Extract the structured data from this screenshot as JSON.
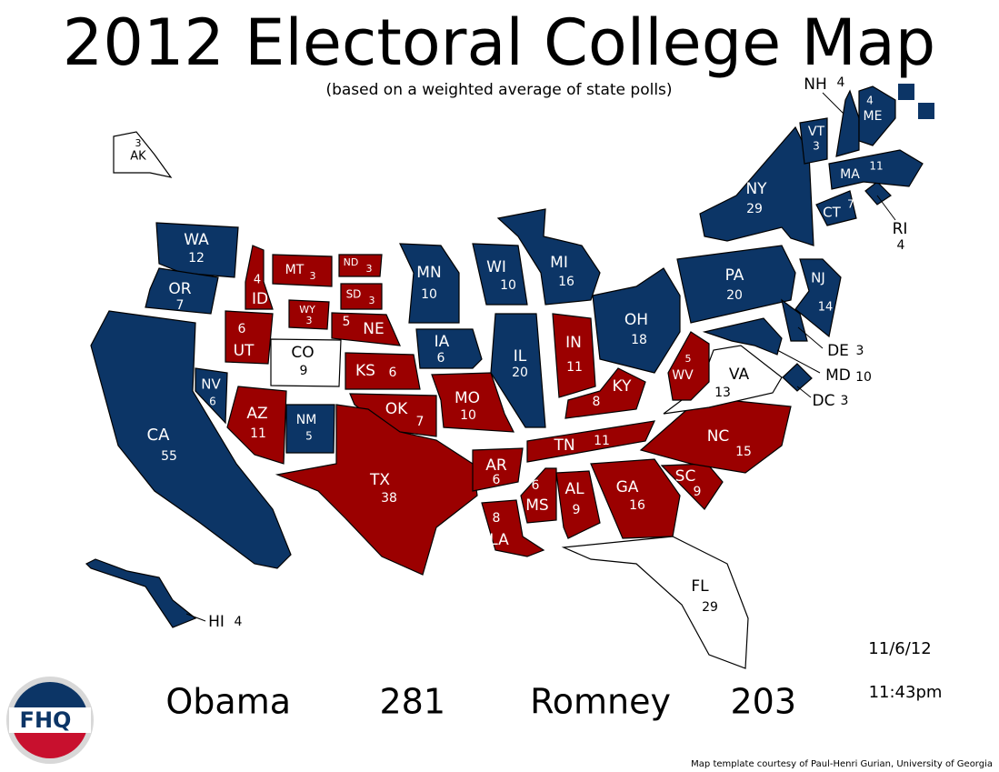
{
  "title": "2012 Electoral College Map",
  "subtitle": "(based on a weighted average of state polls)",
  "states": [
    {
      "abbr": "WA",
      "votes": 12,
      "color": "#0c3566"
    },
    {
      "abbr": "OR",
      "votes": 7,
      "color": "#0c3566"
    },
    {
      "abbr": "CA",
      "votes": 55,
      "color": "#0c3566"
    },
    {
      "abbr": "NV",
      "votes": 6,
      "color": "#0c3566"
    },
    {
      "abbr": "ID",
      "votes": 4,
      "color": "#9b0000"
    },
    {
      "abbr": "MT",
      "votes": 3,
      "color": "#9b0000"
    },
    {
      "abbr": "WY",
      "votes": 3,
      "color": "#9b0000"
    },
    {
      "abbr": "UT",
      "votes": 6,
      "color": "#9b0000"
    },
    {
      "abbr": "CO",
      "votes": 9,
      "color": "#ffffff"
    },
    {
      "abbr": "AZ",
      "votes": 11,
      "color": "#9b0000"
    },
    {
      "abbr": "NM",
      "votes": 5,
      "color": "#0c3566"
    },
    {
      "abbr": "ND",
      "votes": 3,
      "color": "#9b0000"
    },
    {
      "abbr": "SD",
      "votes": 3,
      "color": "#9b0000"
    },
    {
      "abbr": "NE",
      "votes": 5,
      "color": "#9b0000"
    },
    {
      "abbr": "KS",
      "votes": 6,
      "color": "#9b0000"
    },
    {
      "abbr": "OK",
      "votes": 7,
      "color": "#9b0000"
    },
    {
      "abbr": "TX",
      "votes": 38,
      "color": "#9b0000"
    },
    {
      "abbr": "MN",
      "votes": 10,
      "color": "#0c3566"
    },
    {
      "abbr": "IA",
      "votes": 6,
      "color": "#0c3566"
    },
    {
      "abbr": "MO",
      "votes": 10,
      "color": "#9b0000"
    },
    {
      "abbr": "AR",
      "votes": 6,
      "color": "#9b0000"
    },
    {
      "abbr": "LA",
      "votes": 8,
      "color": "#9b0000"
    },
    {
      "abbr": "WI",
      "votes": 10,
      "color": "#0c3566"
    },
    {
      "abbr": "IL",
      "votes": 20,
      "color": "#0c3566"
    },
    {
      "abbr": "MI",
      "votes": 16,
      "color": "#0c3566"
    },
    {
      "abbr": "IN",
      "votes": 11,
      "color": "#9b0000"
    },
    {
      "abbr": "OH",
      "votes": 18,
      "color": "#0c3566"
    },
    {
      "abbr": "KY",
      "votes": 8,
      "color": "#9b0000"
    },
    {
      "abbr": "TN",
      "votes": 11,
      "color": "#9b0000"
    },
    {
      "abbr": "MS",
      "votes": 6,
      "color": "#9b0000"
    },
    {
      "abbr": "AL",
      "votes": 9,
      "color": "#9b0000"
    },
    {
      "abbr": "GA",
      "votes": 16,
      "color": "#9b0000"
    },
    {
      "abbr": "FL",
      "votes": 29,
      "color": "#ffffff"
    },
    {
      "abbr": "SC",
      "votes": 9,
      "color": "#9b0000"
    },
    {
      "abbr": "NC",
      "votes": 15,
      "color": "#9b0000"
    },
    {
      "abbr": "VA",
      "votes": 13,
      "color": "#ffffff"
    },
    {
      "abbr": "WV",
      "votes": 5,
      "color": "#9b0000"
    },
    {
      "abbr": "PA",
      "votes": 20,
      "color": "#0c3566"
    },
    {
      "abbr": "NY",
      "votes": 29,
      "color": "#0c3566"
    },
    {
      "abbr": "NJ",
      "votes": 14,
      "color": "#0c3566"
    },
    {
      "abbr": "DE",
      "votes": 3,
      "color": "#0c3566"
    },
    {
      "abbr": "MD",
      "votes": 10,
      "color": "#0c3566"
    },
    {
      "abbr": "DC",
      "votes": 3,
      "color": "#0c3566"
    },
    {
      "abbr": "CT",
      "votes": 7,
      "color": "#0c3566"
    },
    {
      "abbr": "RI",
      "votes": 4,
      "color": "#0c3566"
    },
    {
      "abbr": "MA",
      "votes": 11,
      "color": "#0c3566"
    },
    {
      "abbr": "VT",
      "votes": 3,
      "color": "#0c3566"
    },
    {
      "abbr": "NH",
      "votes": 4,
      "color": "#0c3566"
    },
    {
      "abbr": "ME",
      "votes": 4,
      "color": "#0c3566"
    },
    {
      "abbr": "AK",
      "votes": 3,
      "color": "#ffffff"
    },
    {
      "abbr": "HI",
      "votes": 4,
      "color": "#0c3566"
    }
  ],
  "totals": [
    {
      "name": "Obama",
      "votes": 281
    },
    {
      "name": "Romney",
      "votes": 203
    }
  ],
  "date": "11/6/12",
  "time": "11:43pm",
  "logo": "FHQ",
  "credit": "Map template courtesy of Paul-Henri Gurian, University of Georgia"
}
